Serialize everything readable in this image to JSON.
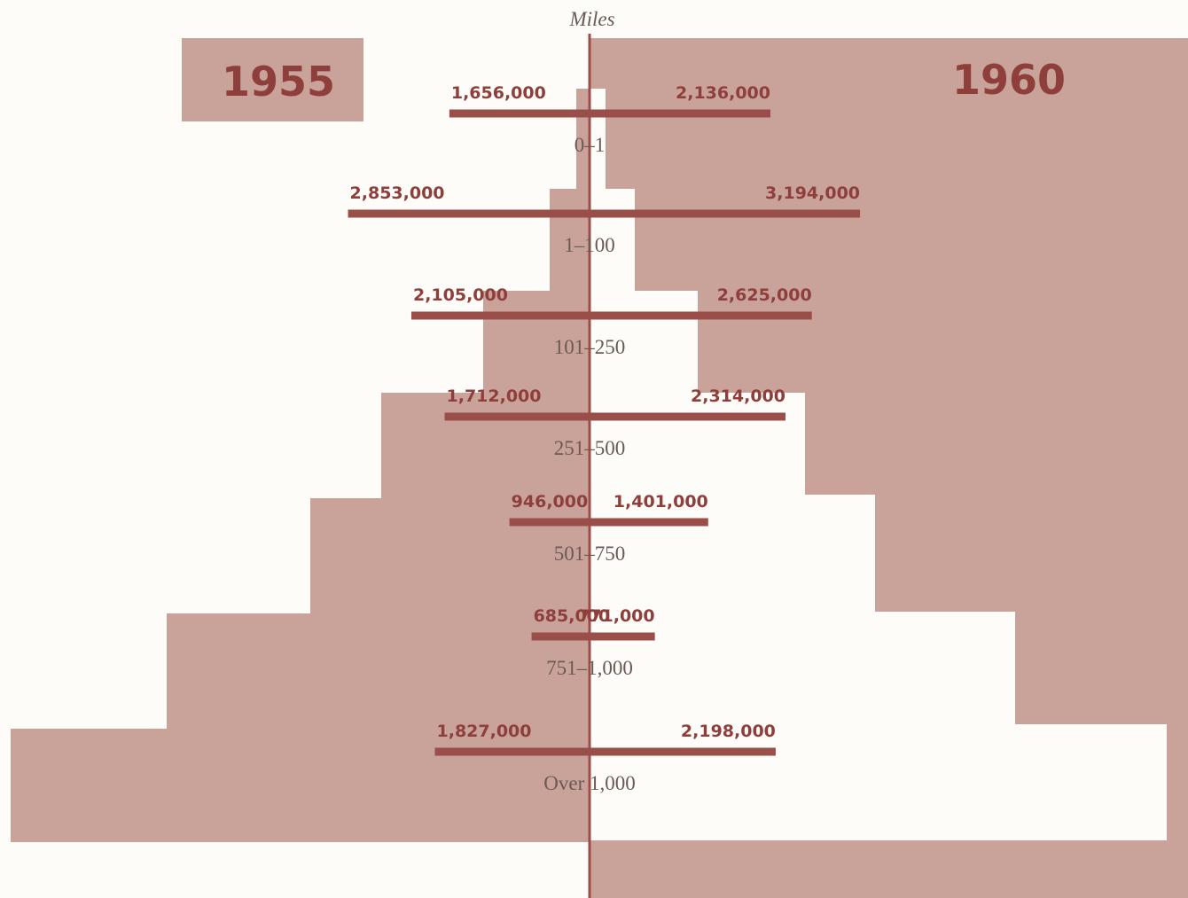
{
  "chart_data": {
    "type": "butterfly",
    "axis_label": "Miles",
    "categories": [
      "0–1",
      "1–100",
      "101–250",
      "251–500",
      "501–750",
      "751–1,000",
      "Over 1,000"
    ],
    "series": [
      {
        "name": "1955",
        "color": "#9a4e4a",
        "values": [
          1656000,
          2853000,
          2105000,
          1712000,
          946000,
          685000,
          1827000
        ],
        "value_labels": [
          "1,656,000",
          "2,853,000",
          "2,105,000",
          "1,712,000",
          "946,000",
          "685,000",
          "1,827,000"
        ]
      },
      {
        "name": "1960",
        "color": "#9a4e4a",
        "values": [
          2136000,
          3194000,
          2625000,
          2314000,
          1401000,
          771000,
          2198000
        ],
        "value_labels": [
          "2,136,000",
          "3,194,000",
          "2,625,000",
          "2,314,000",
          "1,401,000",
          "771,000",
          "2,198,000"
        ]
      }
    ]
  }
}
